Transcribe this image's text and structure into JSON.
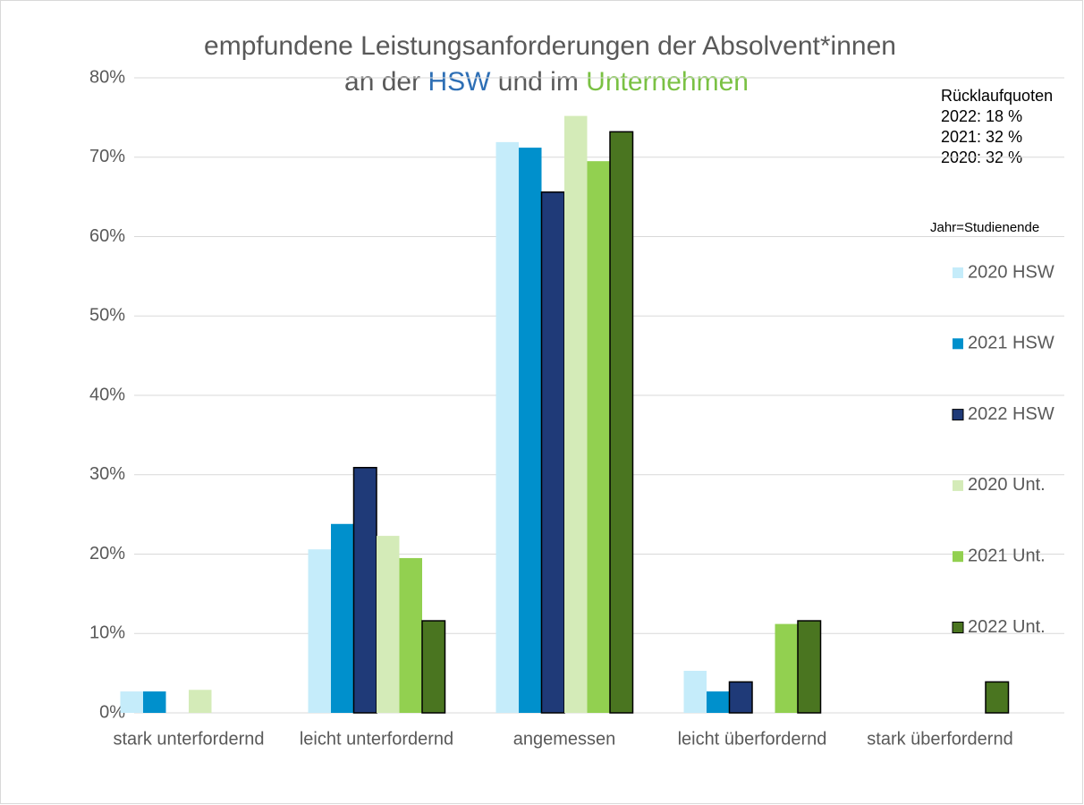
{
  "chart_data": {
    "type": "bar",
    "title": [
      "empfundene Leistungsanforderungen der Absolvent*innen",
      [
        "an der ",
        "HSW",
        " und im ",
        "Unternehmen"
      ]
    ],
    "title_colors": [
      "#595959",
      "#2e6fb5",
      "#595959",
      "#7ac143"
    ],
    "categories": [
      "stark unterfordernd",
      "leicht unterfordernd",
      "angemessen",
      "leicht überfordernd",
      "stark überfordernd"
    ],
    "series": [
      {
        "name": "2020 HSW",
        "color": "#c5ecfa",
        "values": [
          2.7,
          20.6,
          71.9,
          5.3,
          0
        ]
      },
      {
        "name": "2021 HSW",
        "color": "#0090cc",
        "values": [
          2.7,
          23.8,
          71.2,
          2.7,
          0
        ]
      },
      {
        "name": "2022 HSW",
        "color": "#1f3a78",
        "edgecolor": "#000000",
        "values": [
          0,
          30.9,
          65.6,
          3.9,
          0
        ]
      },
      {
        "name": "2020 Unt.",
        "color": "#d4ebb8",
        "values": [
          2.9,
          22.3,
          75.2,
          0,
          0
        ]
      },
      {
        "name": "2021 Unt.",
        "color": "#92d050",
        "values": [
          0,
          19.5,
          69.5,
          11.2,
          0
        ]
      },
      {
        "name": "2022 Unt.",
        "color": "#4a7520",
        "edgecolor": "#000000",
        "values": [
          0,
          11.6,
          73.2,
          11.6,
          3.9
        ]
      }
    ],
    "ylim": [
      0,
      80
    ],
    "yticks": [
      {
        "value": 0,
        "label": "0%"
      },
      {
        "value": 10,
        "label": "10%"
      },
      {
        "value": 20,
        "label": "20%"
      },
      {
        "value": 30,
        "label": "30%"
      },
      {
        "value": 40,
        "label": "40%"
      },
      {
        "value": 50,
        "label": "50%"
      },
      {
        "value": 60,
        "label": "60%"
      },
      {
        "value": 70,
        "label": "70%"
      },
      {
        "value": 80,
        "label": "80%"
      }
    ],
    "grid": true,
    "legend": "right",
    "legend_title": "Jahr=Studienende",
    "annotations": [
      "Rücklaufquoten",
      "2022: 18 %",
      "2021: 32 %",
      "2020: 32 %"
    ]
  }
}
